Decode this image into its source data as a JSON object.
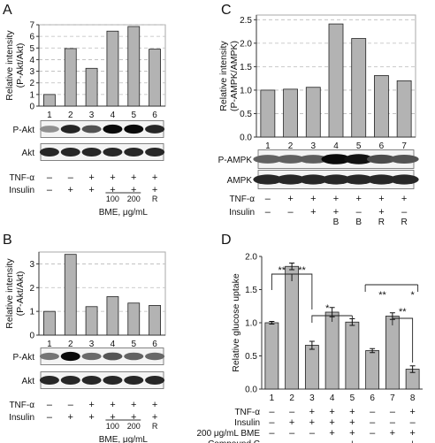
{
  "panels": {
    "A": {
      "letter": "A"
    },
    "B": {
      "letter": "B"
    },
    "C": {
      "letter": "C"
    },
    "D": {
      "letter": "D"
    }
  },
  "chart_data": [
    {
      "id": "A",
      "type": "bar",
      "ylabel": "Relative intensity\n(P-Akt/Akt)",
      "ylim": [
        0,
        7
      ],
      "yticks": [
        0,
        1,
        2,
        3,
        4,
        5,
        6,
        7
      ],
      "grid": true,
      "categories": [
        "1",
        "2",
        "3",
        "4",
        "5",
        "6"
      ],
      "values": [
        1.0,
        4.95,
        3.25,
        6.45,
        6.85,
        4.9
      ],
      "blots": [
        "P-Akt",
        "Akt"
      ],
      "treatments": [
        {
          "label": "TNF-α",
          "marks": [
            "–",
            "–",
            "+",
            "+",
            "+",
            "+"
          ]
        },
        {
          "label": "Insulin",
          "marks": [
            "–",
            "+",
            "+",
            "+",
            "+",
            "+"
          ]
        }
      ],
      "subs": [
        "",
        "",
        "",
        "100",
        "200",
        "R"
      ],
      "bme_label": "BME, μg/mL"
    },
    {
      "id": "B",
      "type": "bar",
      "ylabel": "Relative intensity\n(P-Akt/Akt)",
      "ylim": [
        0,
        3.5
      ],
      "yticks": [
        0,
        1,
        2,
        3
      ],
      "grid": true,
      "categories": [
        "1",
        "2",
        "3",
        "4",
        "5",
        "6"
      ],
      "values": [
        1.0,
        3.4,
        1.2,
        1.62,
        1.35,
        1.25
      ],
      "blots": [
        "P-Akt",
        "Akt"
      ],
      "treatments": [
        {
          "label": "TNF-α",
          "marks": [
            "–",
            "–",
            "+",
            "+",
            "+",
            "+"
          ]
        },
        {
          "label": "Insulin",
          "marks": [
            "–",
            "+",
            "+",
            "+",
            "+",
            "+"
          ]
        }
      ],
      "subs": [
        "",
        "",
        "",
        "100",
        "200",
        "R"
      ],
      "bme_label": "BME, μg/mL"
    },
    {
      "id": "C",
      "type": "bar",
      "ylabel": "Relative intensity\n(P-AMPK/AMPK)",
      "ylim": [
        0,
        2.6
      ],
      "yticks": [
        0,
        0.5,
        1.0,
        1.5,
        2.0,
        2.5
      ],
      "grid": true,
      "categories": [
        "1",
        "2",
        "3",
        "4",
        "5",
        "6",
        "7"
      ],
      "values": [
        1.0,
        1.02,
        1.06,
        2.41,
        2.1,
        1.31,
        1.2
      ],
      "blots": [
        "P-AMPK",
        "AMPK"
      ],
      "treatments": [
        {
          "label": "TNF-α",
          "marks": [
            "–",
            "+",
            "+",
            "+",
            "+",
            "+",
            "+"
          ]
        },
        {
          "label": "Insulin",
          "marks": [
            "–",
            "–",
            "+",
            "+",
            "–",
            "+",
            "–"
          ]
        }
      ],
      "subs": [
        "",
        "",
        "",
        "B",
        "B",
        "R",
        "R"
      ]
    },
    {
      "id": "D",
      "type": "bar",
      "ylabel": "Relative glucose uptake",
      "ylim": [
        0,
        2.0
      ],
      "yticks": [
        0,
        0.5,
        1.0,
        1.5,
        2.0
      ],
      "grid": false,
      "categories": [
        "1",
        "2",
        "3",
        "4",
        "5",
        "6",
        "7",
        "8"
      ],
      "values": [
        1.0,
        1.85,
        0.66,
        1.16,
        1.01,
        0.58,
        1.1,
        0.3
      ],
      "errors": [
        0.02,
        0.05,
        0.06,
        0.07,
        0.05,
        0.03,
        0.05,
        0.05
      ],
      "significance": [
        "**",
        "**",
        "*",
        "**",
        "*",
        "**"
      ],
      "treatments": [
        {
          "label": "TNF-α",
          "marks": [
            "–",
            "–",
            "+",
            "+",
            "+",
            "–",
            "–",
            "+"
          ]
        },
        {
          "label": "Insulin",
          "marks": [
            "–",
            "+",
            "+",
            "+",
            "+",
            "–",
            "–",
            "–"
          ]
        },
        {
          "label": "200 μg/mL BME",
          "marks": [
            "–",
            "–",
            "–",
            "+",
            "+",
            "–",
            "+",
            "+"
          ]
        },
        {
          "label": "Compound C",
          "marks": [
            "–",
            "–",
            "–",
            "–",
            "+",
            "–",
            "–",
            "+"
          ]
        }
      ]
    }
  ]
}
